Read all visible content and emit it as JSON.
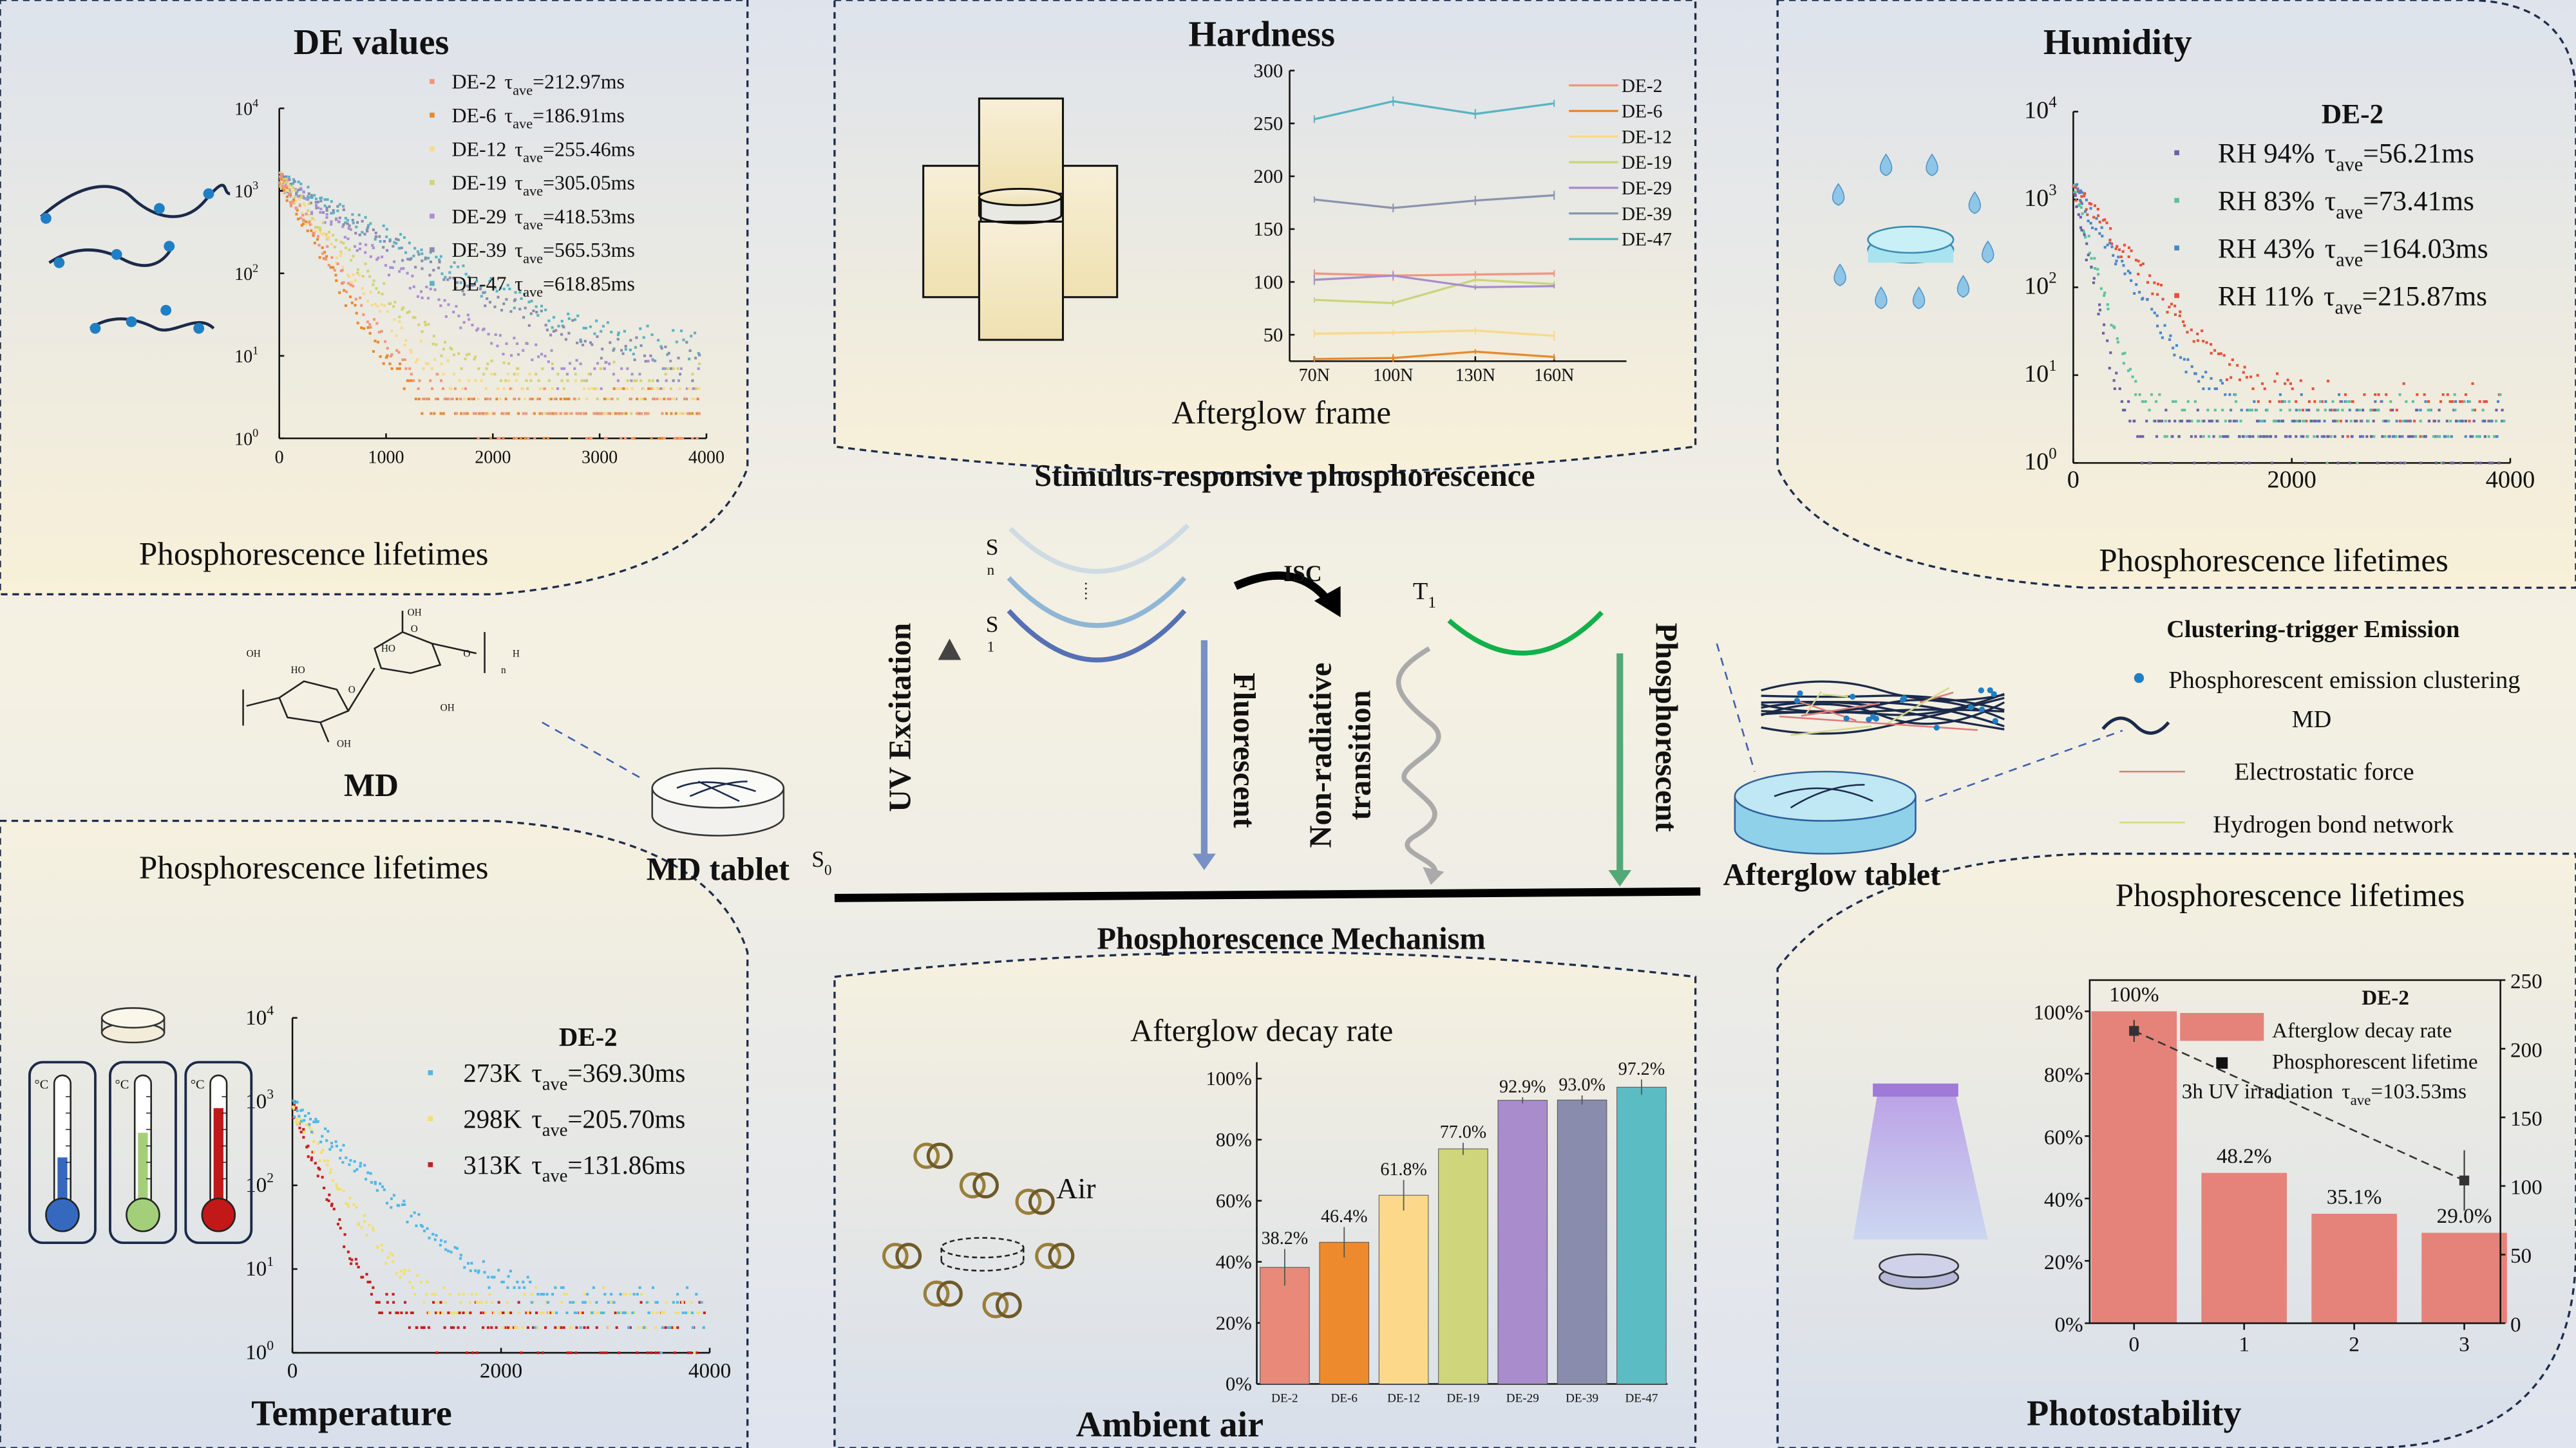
{
  "tau": {
    "symbol": "τ",
    "subscript": "ave"
  },
  "log_ticks": {
    "base": "10",
    "exponents": [
      "0",
      "1",
      "2",
      "3",
      "4"
    ]
  },
  "panels": {
    "de_values": {
      "title": "DE values",
      "caption": "Phosphorescence lifetimes"
    },
    "hardness": {
      "title": "Hardness",
      "caption": "Afterglow frame"
    },
    "humidity": {
      "title": "Humidity",
      "caption": "Phosphorescence lifetimes"
    },
    "temperature": {
      "caption_top": "Phosphorescence lifetimes",
      "title": "Temperature",
      "thermo_unit": "°C"
    },
    "ambient": {
      "caption": "Afterglow decay rate",
      "title": "Ambient air",
      "air_label": "Air"
    },
    "photostability": {
      "caption": "Phosphorescence lifetimes",
      "title": "Photostability"
    }
  },
  "center": {
    "top_title": "Stimulus-responsive phosphorescence",
    "bottom_title": "Phosphorescence Mechanism",
    "uv_excitation": "UV Excitation",
    "fluorescent": "Fluorescent",
    "non_radiative": "Non-radiative",
    "transition": "transition",
    "phosphorescent": "Phosphorescent",
    "isc": "ISC",
    "sn_main": "S",
    "sn_sub": "n",
    "s1_main": "S",
    "s1_sub": "1",
    "t1_main": "T",
    "t1_sub": "1",
    "s0_main": "S",
    "s0_sub": "0"
  },
  "left_middle": {
    "md_label": "MD",
    "tablet_label": "MD tablet",
    "molecule_labels": [
      "OH",
      "HO",
      "O",
      "HO",
      "OH",
      "O",
      "OH",
      "O",
      "OH",
      "H",
      "n"
    ]
  },
  "right_middle": {
    "tablet_label": "Afterglow tablet",
    "legend_title": "Clustering-trigger Emission",
    "legend_items": [
      {
        "label": "Phosphorescent emission clustering",
        "color": "#1f7fc4"
      },
      {
        "label": "MD",
        "color": "#1b2a4a"
      },
      {
        "label": "Electrostatic force",
        "color": "#e07a7a"
      },
      {
        "label": "Hydrogen bond network",
        "color": "#d6d98a"
      }
    ]
  },
  "chart_data": [
    {
      "id": "de_values",
      "type": "scatter",
      "y_scale": "log",
      "xlim": [
        0,
        4000
      ],
      "ylim": [
        1,
        10000
      ],
      "x_ticks": [
        "0",
        "1000",
        "2000",
        "3000",
        "4000"
      ],
      "series": [
        {
          "name": "DE-2",
          "tau": "=212.97ms",
          "tau_ms": 212.97,
          "color": "#f2957f"
        },
        {
          "name": "DE-6",
          "tau": "=186.91ms",
          "tau_ms": 186.91,
          "color": "#e8892e"
        },
        {
          "name": "DE-12",
          "tau": "=255.46ms",
          "tau_ms": 255.46,
          "color": "#f9d98a"
        },
        {
          "name": "DE-19",
          "tau": "=305.05ms",
          "tau_ms": 305.05,
          "color": "#d3d372"
        },
        {
          "name": "DE-29",
          "tau": "=418.53ms",
          "tau_ms": 418.53,
          "color": "#ad8fd0"
        },
        {
          "name": "DE-39",
          "tau": "=565.53ms",
          "tau_ms": 565.53,
          "color": "#8a8cae"
        },
        {
          "name": "DE-47",
          "tau": "=618.85ms",
          "tau_ms": 618.85,
          "color": "#5ab3c3"
        }
      ]
    },
    {
      "id": "hardness",
      "type": "line",
      "categories": [
        "70N",
        "100N",
        "130N",
        "160N"
      ],
      "y_ticks": [
        "50",
        "100",
        "150",
        "200",
        "250",
        "300"
      ],
      "ylim": [
        25,
        300
      ],
      "series": [
        {
          "name": "DE-2",
          "values": [
            108,
            106,
            107,
            108
          ],
          "color": "#f2957f"
        },
        {
          "name": "DE-6",
          "values": [
            27,
            28,
            34,
            29
          ],
          "color": "#e8892e"
        },
        {
          "name": "DE-12",
          "values": [
            51,
            52,
            54,
            49
          ],
          "color": "#f9d98a"
        },
        {
          "name": "DE-19",
          "values": [
            83,
            80,
            102,
            98
          ],
          "color": "#c9d57a"
        },
        {
          "name": "DE-29",
          "values": [
            102,
            106,
            95,
            96
          ],
          "color": "#a98ccc"
        },
        {
          "name": "DE-39",
          "values": [
            178,
            170,
            177,
            182
          ],
          "color": "#8a94ae"
        },
        {
          "name": "DE-47",
          "values": [
            254,
            271,
            259,
            269
          ],
          "color": "#5ab3c3"
        }
      ]
    },
    {
      "id": "humidity",
      "type": "scatter",
      "y_scale": "log",
      "xlim": [
        0,
        4000
      ],
      "ylim": [
        1,
        10000
      ],
      "x_ticks": [
        "0",
        "2000",
        "4000"
      ],
      "sample": "DE-2",
      "series": [
        {
          "name": "RH 94%",
          "tau": "=56.21ms",
          "tau_ms": 56.21,
          "color": "#6a5fa8"
        },
        {
          "name": "RH 83%",
          "tau": "=73.41ms",
          "tau_ms": 73.41,
          "color": "#5cc2a0"
        },
        {
          "name": "RH 43%",
          "tau": "=164.03ms",
          "tau_ms": 164.03,
          "color": "#4a86c8"
        },
        {
          "name": "RH 11%",
          "tau": "=215.87ms",
          "tau_ms": 215.87,
          "color": "#e8503a"
        }
      ]
    },
    {
      "id": "temperature",
      "type": "scatter",
      "y_scale": "log",
      "xlim": [
        0,
        4000
      ],
      "ylim": [
        1,
        10000
      ],
      "x_ticks": [
        "0",
        "2000",
        "4000"
      ],
      "sample": "DE-2",
      "series": [
        {
          "name": "273K",
          "tau": "=369.30ms",
          "tau_ms": 369.3,
          "color": "#4fb8e8"
        },
        {
          "name": "298K",
          "tau": "=205.70ms",
          "tau_ms": 205.7,
          "color": "#f2e06a"
        },
        {
          "name": "313K",
          "tau": "=131.86ms",
          "tau_ms": 131.86,
          "color": "#c81e1e"
        }
      ]
    },
    {
      "id": "ambient_air",
      "type": "bar",
      "title": "Afterglow decay rate",
      "categories": [
        "DE-2",
        "DE-6",
        "DE-12",
        "DE-19",
        "DE-29",
        "DE-39",
        "DE-47"
      ],
      "values": [
        38.2,
        46.4,
        61.8,
        77.0,
        92.9,
        93.0,
        97.2
      ],
      "value_labels": [
        "38.2%",
        "46.4%",
        "61.8%",
        "77.0%",
        "92.9%",
        "93.0%",
        "97.2%"
      ],
      "errors": [
        6,
        5,
        5,
        2,
        1,
        1.5,
        2.5
      ],
      "colors": [
        "#e8897a",
        "#ee8a2e",
        "#fcd98a",
        "#cfd57a",
        "#a98ccc",
        "#8a8cae",
        "#5bbcc4"
      ],
      "y_ticks": [
        "0%",
        "20%",
        "40%",
        "60%",
        "80%",
        "100%"
      ],
      "ylim": [
        0,
        100
      ]
    },
    {
      "id": "photostability",
      "type": "bar",
      "sample": "DE-2",
      "categories": [
        "0",
        "1",
        "2",
        "3"
      ],
      "values": [
        100,
        48.2,
        35.1,
        29.0
      ],
      "value_labels": [
        "100%",
        "48.2%",
        "35.1%",
        "29.0%"
      ],
      "bar_color": "#e5837a",
      "y_ticks": [
        "0%",
        "20%",
        "40%",
        "60%",
        "80%",
        "100%"
      ],
      "y2_ticks": [
        "0",
        "50",
        "100",
        "150",
        "200",
        "250"
      ],
      "ylim": [
        0,
        110
      ],
      "y2lim": [
        0,
        250
      ],
      "lifetime_points": [
        {
          "x": 0,
          "y": 213,
          "err": 8
        },
        {
          "x": 3,
          "y": 104,
          "err": 22
        }
      ],
      "legend": {
        "bar": "Afterglow decay rate",
        "line": "Phosphorescent lifetime",
        "note_prefix": "3h UV irradiation  ",
        "note_value": "=103.53ms"
      }
    }
  ]
}
